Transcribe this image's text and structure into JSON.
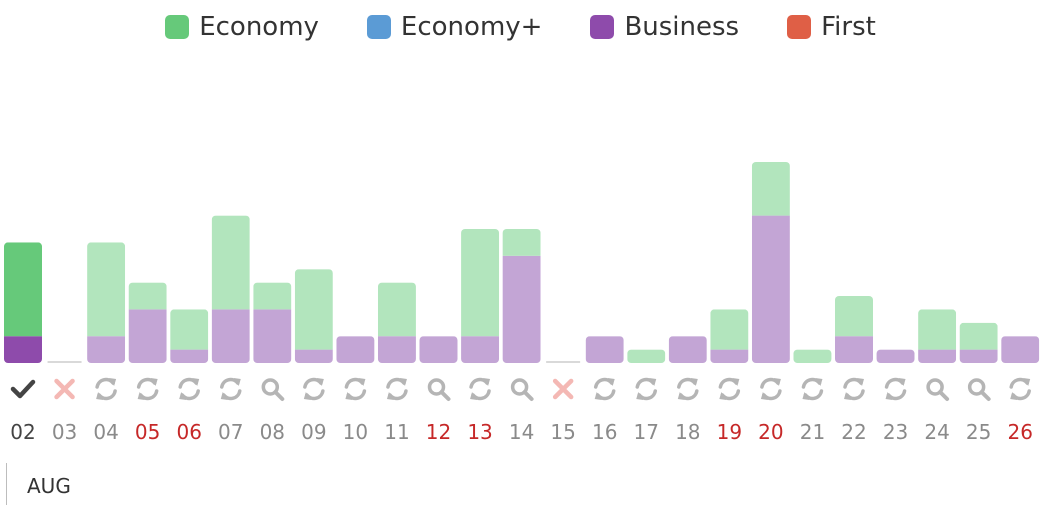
{
  "legend": {
    "items": [
      {
        "label": "Economy",
        "color": "#66c97a"
      },
      {
        "label": "Economy+",
        "color": "#5b9bd5"
      },
      {
        "label": "Business",
        "color": "#8e4bab"
      },
      {
        "label": "First",
        "color": "#df5f46"
      }
    ]
  },
  "chart_data": {
    "type": "bar",
    "stacked": true,
    "categories": [
      "02",
      "03",
      "04",
      "05",
      "06",
      "07",
      "08",
      "09",
      "10",
      "11",
      "12",
      "13",
      "14",
      "15",
      "16",
      "17",
      "18",
      "19",
      "20",
      "21",
      "22",
      "23",
      "24",
      "25",
      "26"
    ],
    "series": [
      {
        "name": "Business",
        "values": [
          1,
          0,
          1,
          2,
          0.5,
          2,
          2,
          0.5,
          1,
          1,
          1,
          1,
          4,
          0,
          1,
          0,
          1,
          0.5,
          5.5,
          0,
          1,
          0.5,
          0.5,
          0.5,
          1
        ]
      },
      {
        "name": "Economy",
        "values": [
          3.5,
          0,
          3.5,
          1,
          1.5,
          3.5,
          1,
          3,
          0,
          2,
          0,
          4,
          1,
          0,
          0,
          0.5,
          0,
          1.5,
          2,
          0.5,
          1.5,
          0,
          1.5,
          1,
          0
        ]
      }
    ],
    "ylim": [
      0,
      8
    ],
    "status_icons": [
      "check",
      "cross",
      "refresh",
      "refresh",
      "refresh",
      "refresh",
      "search",
      "refresh",
      "refresh",
      "refresh",
      "search",
      "refresh",
      "search",
      "cross",
      "refresh",
      "refresh",
      "refresh",
      "refresh",
      "refresh",
      "refresh",
      "refresh",
      "refresh",
      "search",
      "search",
      "refresh"
    ],
    "highlighted_dates": [
      "05",
      "06",
      "12",
      "13",
      "19",
      "20",
      "26"
    ],
    "selected_index": 0,
    "colors": {
      "economy_light": "#b2e5bd",
      "business_light": "#c3a5d5",
      "economy_selected": "#66c97a",
      "business_selected": "#8e4bab",
      "highlight_text": "#c62828",
      "normal_text": "#8a8a8a",
      "selected_text": "#444444",
      "icon_gray": "#b5b5b5",
      "icon_dark": "#444444",
      "cross": "#f4b8b4"
    }
  },
  "month": "AUG"
}
